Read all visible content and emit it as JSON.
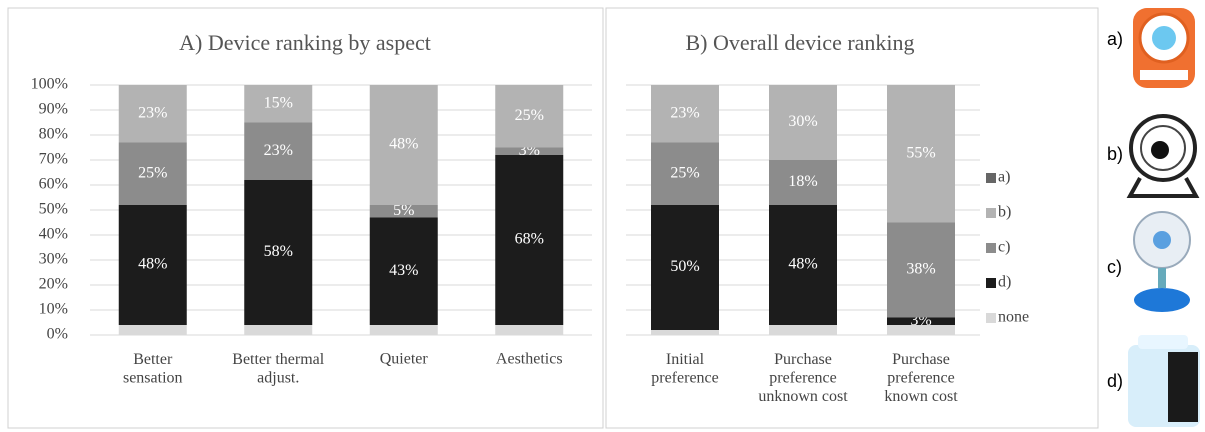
{
  "chart_data": [
    {
      "type": "stacked_bar",
      "title": "A) Device ranking by aspect",
      "categories": [
        "Better\nsensation",
        "Better thermal\nadjust.",
        "Quieter",
        "Aesthetics"
      ],
      "series": [
        {
          "name": "none",
          "color": "#d9d9d9",
          "values": [
            4,
            4,
            4,
            4
          ],
          "value_labels": [
            null,
            null,
            null,
            null
          ]
        },
        {
          "name": "d)",
          "color": "#1c1c1c",
          "values": [
            48,
            58,
            43,
            68
          ],
          "value_labels": [
            "48%",
            "58%",
            "43%",
            "68%"
          ]
        },
        {
          "name": "c)",
          "color": "#8c8c8c",
          "values": [
            25,
            23,
            5,
            3
          ],
          "value_labels": [
            "25%",
            "23%",
            "5%",
            "3%"
          ]
        },
        {
          "name": "b)",
          "color": "#b3b3b3",
          "values": [
            23,
            15,
            48,
            25
          ],
          "value_labels": [
            "23%",
            "15%",
            "48%",
            "25%"
          ]
        },
        {
          "name": "a)",
          "color": "#666666",
          "values": [
            0,
            0,
            0,
            0
          ],
          "value_labels": [
            null,
            null,
            null,
            null
          ]
        }
      ],
      "ylim": [
        0,
        100
      ],
      "yticks": [
        {
          "value": 0,
          "label": "0%"
        },
        {
          "value": 10,
          "label": "10%"
        },
        {
          "value": 20,
          "label": "20%"
        },
        {
          "value": 30,
          "label": "30%"
        },
        {
          "value": 40,
          "label": "40%"
        },
        {
          "value": 50,
          "label": "50%"
        },
        {
          "value": 60,
          "label": "60%"
        },
        {
          "value": 70,
          "label": "70%"
        },
        {
          "value": 80,
          "label": "80%"
        },
        {
          "value": 90,
          "label": "90%"
        },
        {
          "value": 100,
          "label": "100%"
        }
      ],
      "grid": true,
      "legend": false
    },
    {
      "type": "stacked_bar",
      "title": "B) Overall device ranking",
      "categories": [
        "Initial\npreference",
        "Purchase\npreference\nunknown cost",
        "Purchase\npreference\nknown cost"
      ],
      "series": [
        {
          "name": "none",
          "color": "#d9d9d9",
          "values": [
            2,
            4,
            4
          ],
          "value_labels": [
            null,
            null,
            null
          ]
        },
        {
          "name": "d)",
          "color": "#1c1c1c",
          "values": [
            50,
            48,
            3
          ],
          "value_labels": [
            "50%",
            "48%",
            "3%"
          ]
        },
        {
          "name": "c)",
          "color": "#8c8c8c",
          "values": [
            25,
            18,
            38
          ],
          "value_labels": [
            "25%",
            "18%",
            "38%"
          ]
        },
        {
          "name": "b)",
          "color": "#b3b3b3",
          "values": [
            23,
            30,
            55
          ],
          "value_labels": [
            "23%",
            "30%",
            "55%"
          ]
        },
        {
          "name": "a)",
          "color": "#666666",
          "values": [
            0,
            0,
            0
          ],
          "value_labels": [
            null,
            null,
            null
          ]
        }
      ],
      "ylim": [
        0,
        100
      ],
      "yticks": [
        0,
        10,
        20,
        30,
        40,
        50,
        60,
        70,
        80,
        90,
        100
      ],
      "grid": true,
      "legend": "right"
    }
  ],
  "device_labels": [
    "a)",
    "b)",
    "c)",
    "d)"
  ]
}
